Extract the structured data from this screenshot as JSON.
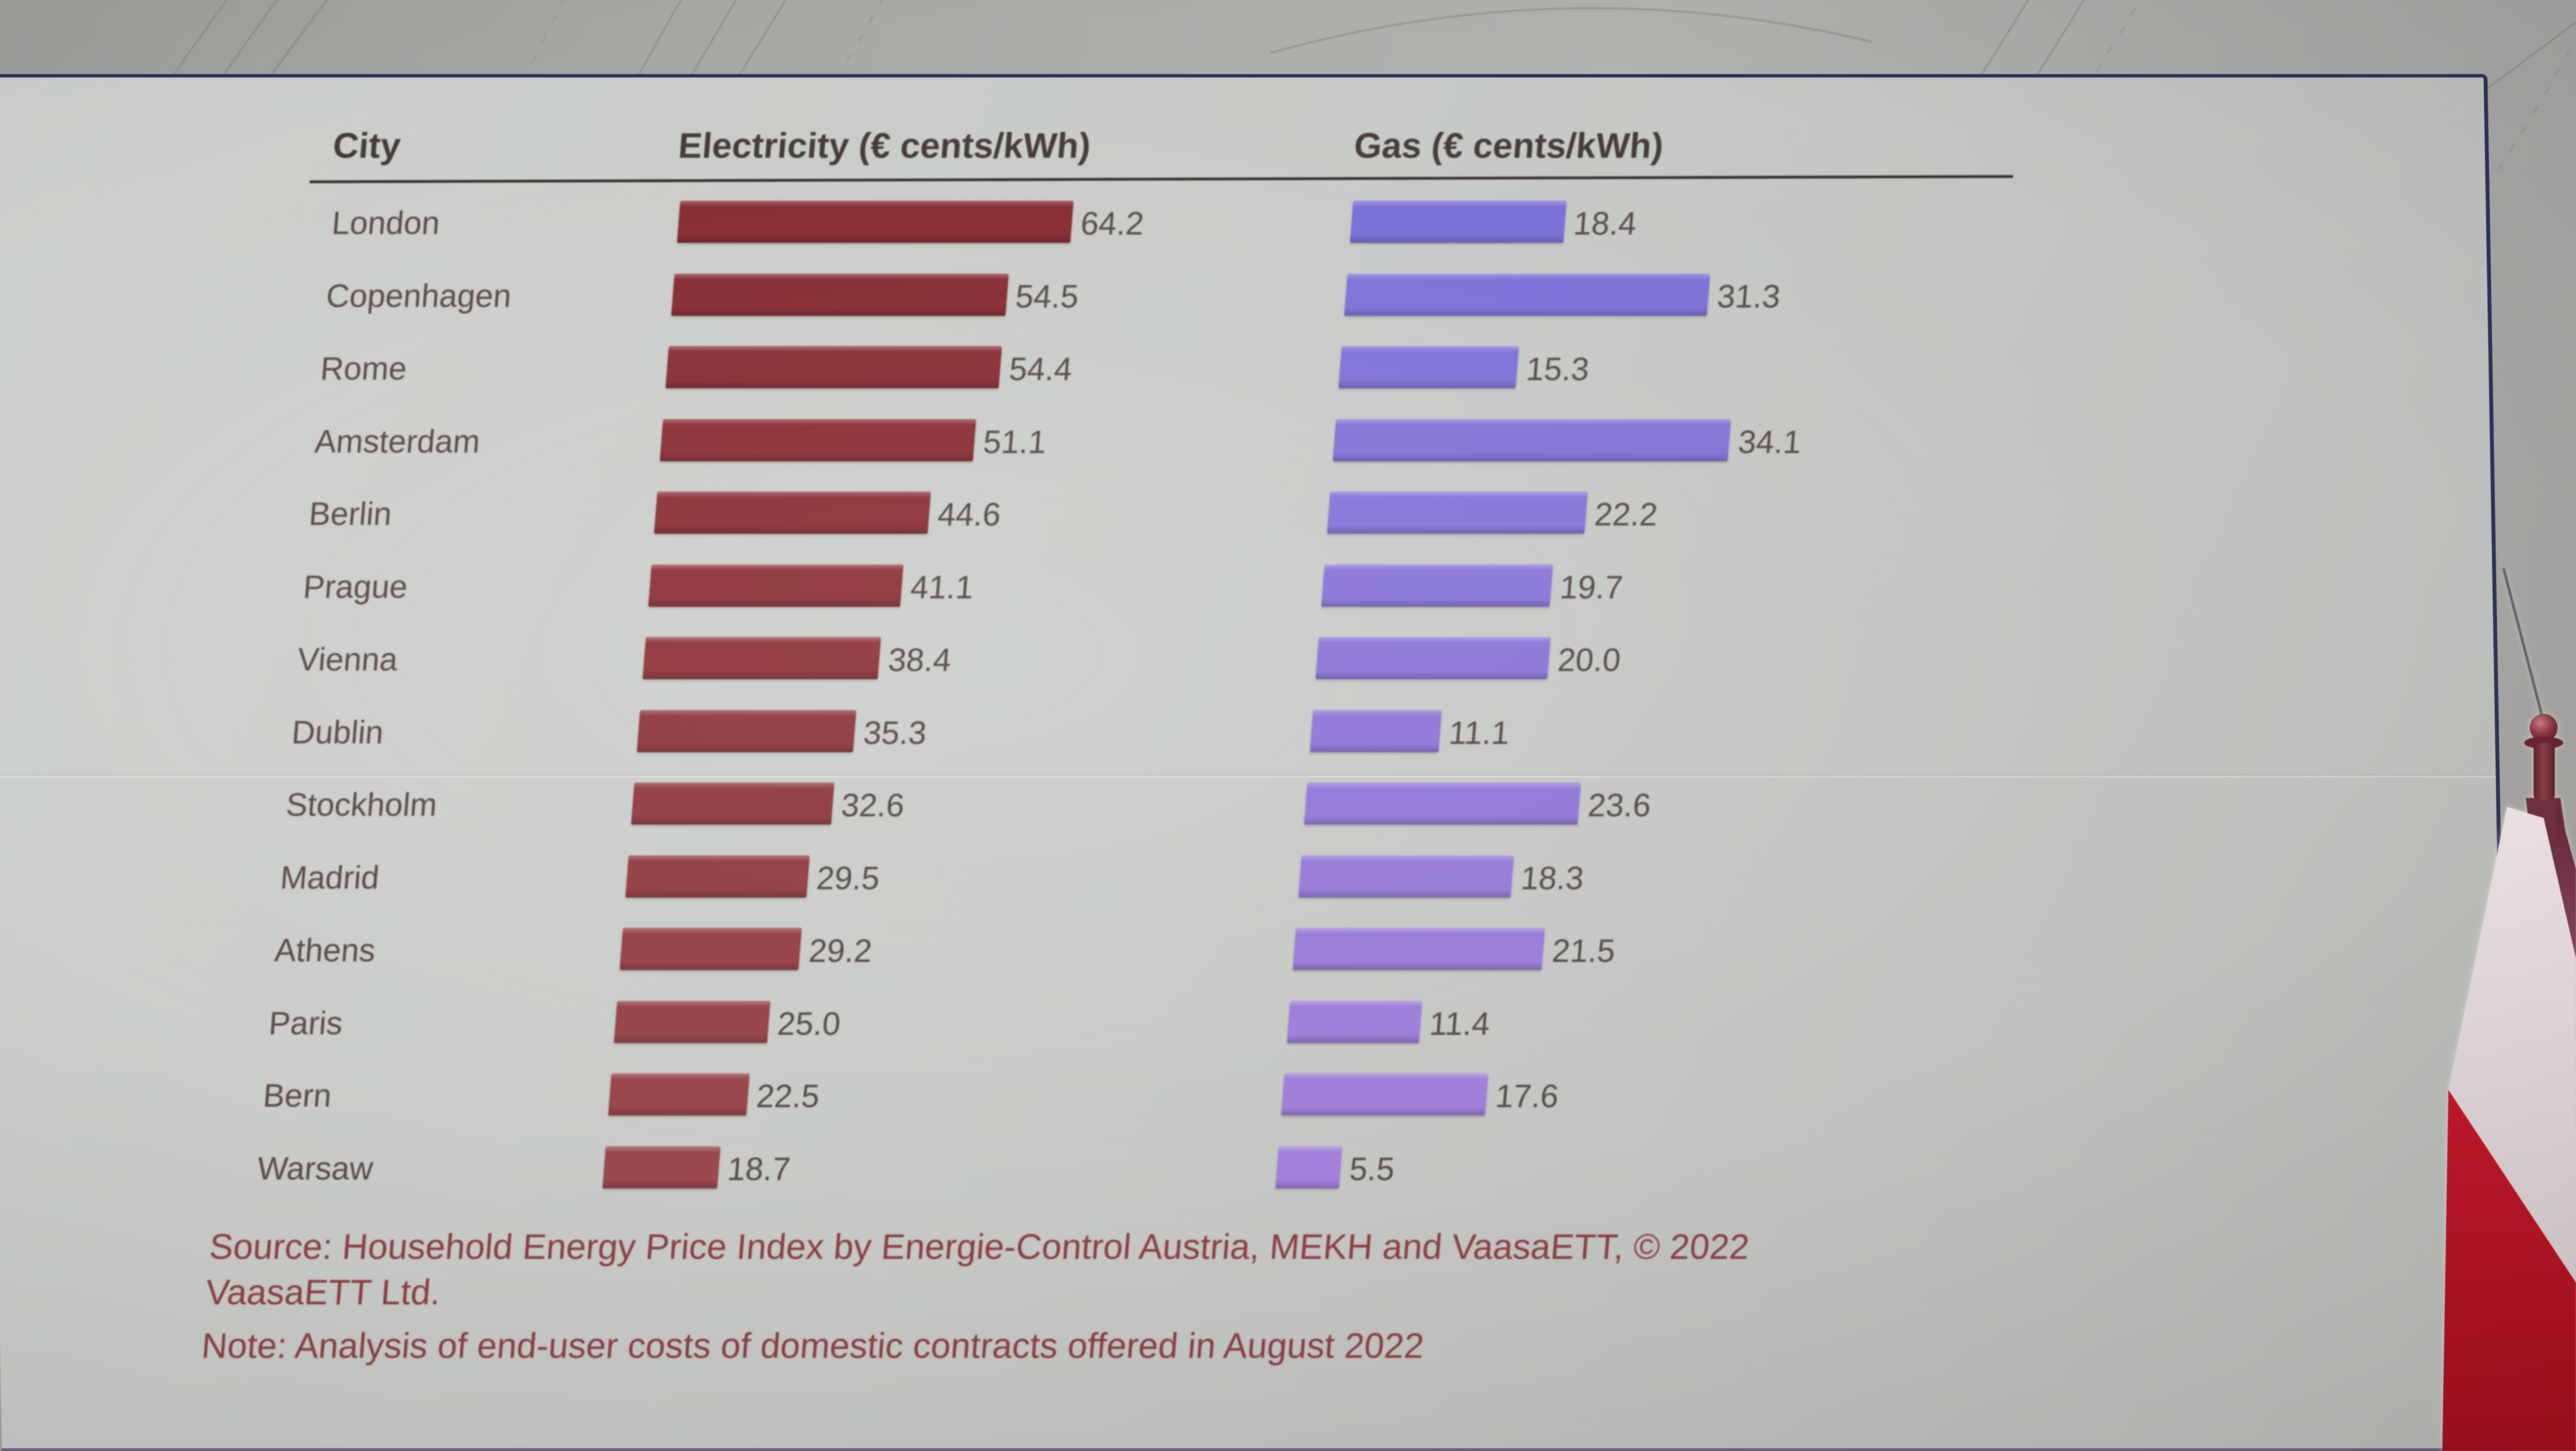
{
  "slide": {
    "table": {
      "columns": [
        "City",
        "Electricity (€ cents/kWh)",
        "Gas (€ cents/kWh)"
      ],
      "rows": [
        {
          "city": "London",
          "electricity": "64.2",
          "gas": "18.4"
        },
        {
          "city": "Copenhagen",
          "electricity": "54.5",
          "gas": "31.3"
        },
        {
          "city": "Rome",
          "electricity": "54.4",
          "gas": "15.3"
        },
        {
          "city": "Amsterdam",
          "electricity": "51.1",
          "gas": "34.1"
        },
        {
          "city": "Berlin",
          "electricity": "44.6",
          "gas": "22.2"
        },
        {
          "city": "Prague",
          "electricity": "41.1",
          "gas": "19.7"
        },
        {
          "city": "Vienna",
          "electricity": "38.4",
          "gas": "20.0"
        },
        {
          "city": "Dublin",
          "electricity": "35.3",
          "gas": "11.1"
        },
        {
          "city": "Stockholm",
          "electricity": "32.6",
          "gas": "23.6"
        },
        {
          "city": "Madrid",
          "electricity": "29.5",
          "gas": "18.3"
        },
        {
          "city": "Athens",
          "electricity": "29.2",
          "gas": "21.5"
        },
        {
          "city": "Paris",
          "electricity": "25.0",
          "gas": "11.4"
        },
        {
          "city": "Bern",
          "electricity": "22.5",
          "gas": "17.6"
        },
        {
          "city": "Warsaw",
          "electricity": "18.7",
          "gas": "5.5"
        }
      ]
    },
    "footer": {
      "source_line1": "Source: Household Energy Price Index by Energie-Control Austria, MEKH and VaasaETT, © 2022",
      "source_line2": "VaasaETT Ltd.",
      "note": "Note: Analysis of end-user costs of domestic contracts offered in August 2022"
    }
  },
  "decor": {
    "flag": "poland-desk-flag",
    "backdrop": "faint-arc-lines"
  },
  "colors": {
    "slide_background": "#c7cac6",
    "card_border": "#2c3157",
    "rule_color": "#362f2d",
    "header_text": "#453c39",
    "label_text": "#5c4b47",
    "value_text": "#574b46",
    "source_text": "#8d3e45",
    "electricity_bar_first": "#872c33",
    "electricity_bar_last": "#9a494e",
    "gas_bar_first": "#7a71d8",
    "gas_bar_last": "#a480da",
    "flag_red": "#b91423",
    "flag_white": "#e7dcde"
  },
  "chart_data": {
    "type": "bar",
    "orientation": "horizontal",
    "title": "",
    "categories": [
      "London",
      "Copenhagen",
      "Rome",
      "Amsterdam",
      "Berlin",
      "Prague",
      "Vienna",
      "Dublin",
      "Stockholm",
      "Madrid",
      "Athens",
      "Paris",
      "Bern",
      "Warsaw"
    ],
    "series": [
      {
        "name": "Electricity (€ cents/kWh)",
        "values": [
          64.2,
          54.5,
          54.4,
          51.1,
          44.6,
          41.1,
          38.4,
          35.3,
          32.6,
          29.5,
          29.2,
          25.0,
          22.5,
          18.7
        ]
      },
      {
        "name": "Gas (€ cents/kWh)",
        "values": [
          18.4,
          31.3,
          15.3,
          34.1,
          22.2,
          19.7,
          20.0,
          11.1,
          23.6,
          18.3,
          21.5,
          11.4,
          17.6,
          5.5
        ]
      }
    ],
    "value_labels": true,
    "grid": false,
    "legend_position": "column-headers",
    "source": "Source: Household Energy Price Index by Energie-Control Austria, MEKH and VaasaETT, © 2022 VaasaETT Ltd.",
    "note": "Note: Analysis of end-user costs of domestic contracts offered in August 2022"
  }
}
